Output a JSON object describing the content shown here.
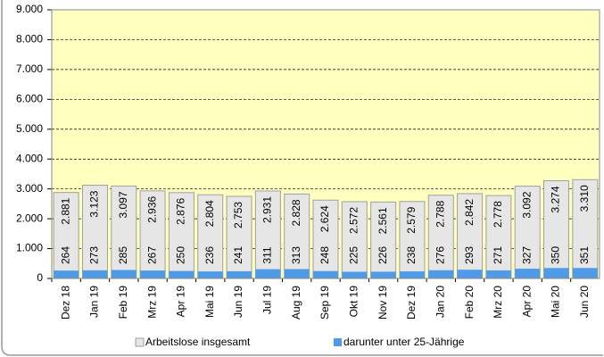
{
  "chart_data": {
    "type": "bar",
    "categories": [
      "Dez 18",
      "Jan 19",
      "Feb 19",
      "Mrz 19",
      "Apr 19",
      "Mai 19",
      "Jun 19",
      "Jul 19",
      "Aug 19",
      "Sep 19",
      "Okt 19",
      "Nov 19",
      "Dez 19",
      "Jan 20",
      "Feb 20",
      "Mrz 20",
      "Apr 20",
      "Mai 20",
      "Jun 20"
    ],
    "series": [
      {
        "name": "Arbeitslose insgesamt",
        "color": "#e6e6e6",
        "values": [
          2881,
          3123,
          3097,
          2936,
          2876,
          2804,
          2753,
          2931,
          2828,
          2624,
          2572,
          2561,
          2579,
          2788,
          2842,
          2778,
          3092,
          3274,
          3310
        ],
        "value_labels": [
          "2.881",
          "3.123",
          "3.097",
          "2.936",
          "2.876",
          "2.804",
          "2.753",
          "2.931",
          "2.828",
          "2.624",
          "2.572",
          "2.561",
          "2.579",
          "2.788",
          "2.842",
          "2.778",
          "3.092",
          "3.274",
          "3.310"
        ]
      },
      {
        "name": "darunter unter 25-Jährige",
        "color": "#4f9be8",
        "values": [
          264,
          273,
          285,
          267,
          250,
          236,
          241,
          311,
          313,
          248,
          225,
          226,
          238,
          276,
          293,
          271,
          327,
          350,
          351
        ]
      }
    ],
    "ylim": [
      0,
      9000
    ],
    "yticks": [
      0,
      {
        "value": 1000,
        "label": "1.000"
      },
      {
        "value": 2000,
        "label": "2.000"
      },
      {
        "value": 3000,
        "label": "3.000"
      },
      {
        "value": 4000,
        "label": "4.000"
      },
      {
        "value": 5000,
        "label": "5.000"
      },
      {
        "value": 6000,
        "label": "6.000"
      },
      {
        "value": 7000,
        "label": "7.000"
      },
      {
        "value": 8000,
        "label": "8.000"
      },
      {
        "value": 9000,
        "label": "9.000"
      }
    ],
    "grid": true
  }
}
